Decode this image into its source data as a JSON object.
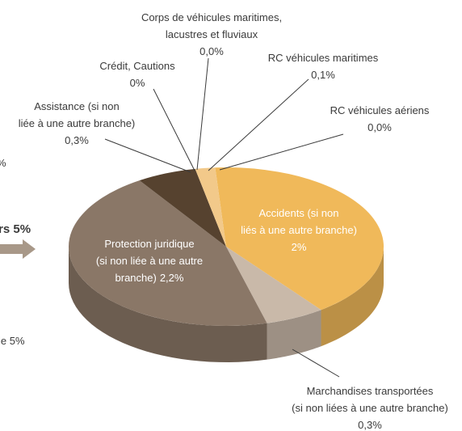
{
  "chart_data": {
    "type": "pie",
    "categories": [
      [
        "Accidents (si non",
        "liés à une autre branche)"
      ],
      [
        "Marchandises transportées",
        "(si non liées à une autre branche)"
      ],
      [
        "Protection juridique",
        "(si non liée à une autre",
        "branche)"
      ],
      [
        "Assistance (si non",
        "liée à une autre branche)"
      ],
      [
        "Crédit, Cautions"
      ],
      [
        "Corps de véhicules maritimes,",
        "lacustres et fluviaux"
      ],
      [
        "RC véhicules maritimes"
      ],
      [
        "RC véhicules aériens"
      ]
    ],
    "values": [
      2,
      0.3,
      2.2,
      0.3,
      0,
      0,
      0.1,
      0
    ],
    "value_labels": [
      "2%",
      "0,3%",
      "2,2%",
      "0,3%",
      "0%",
      "0,0%",
      "0,1%",
      "0,0%"
    ],
    "colors": [
      "#f0b95a",
      "#c9b9a9",
      "#8a7767",
      "#56422f",
      "#e6c48e",
      "#d9c7a8",
      "#f2c98a",
      "#e0cfa8"
    ],
    "fragments": [
      "%",
      "rs 5%",
      "ie 5%"
    ]
  }
}
